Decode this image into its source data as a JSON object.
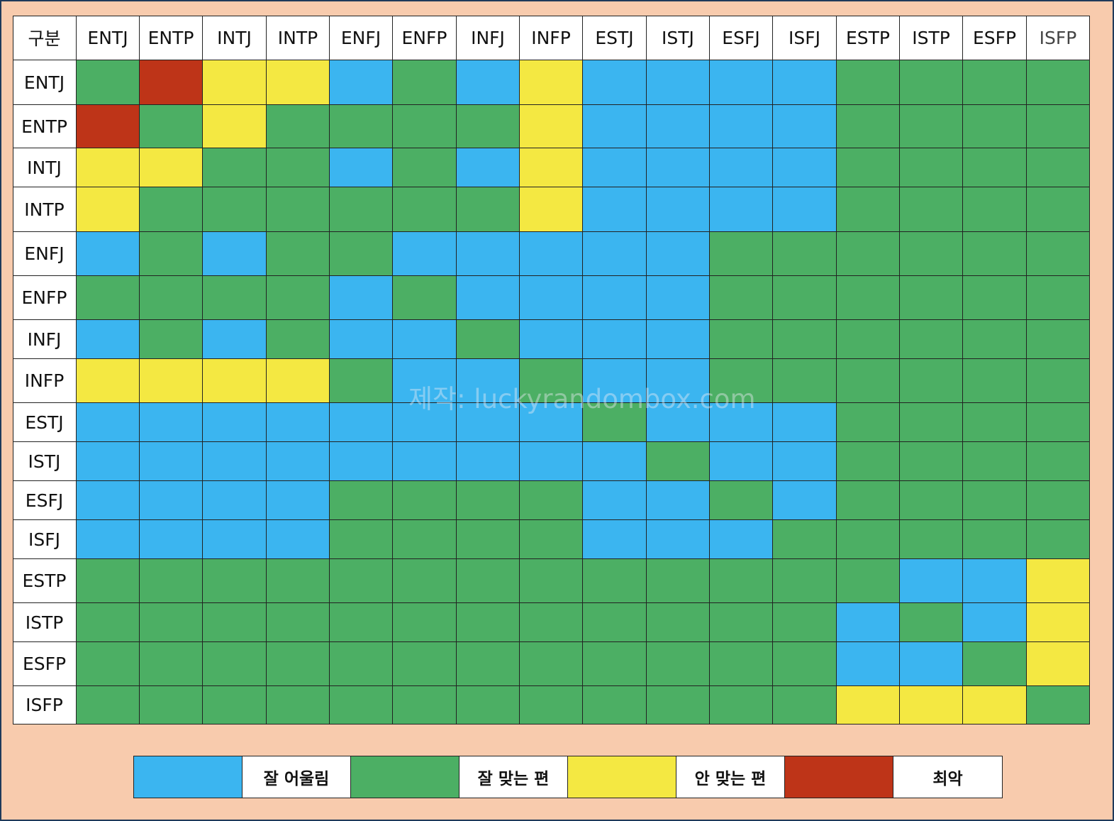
{
  "chart_data": {
    "type": "heatmap",
    "corner_label": "구분",
    "types": [
      "ENTJ",
      "ENTP",
      "INTJ",
      "INTP",
      "ENFJ",
      "ENFP",
      "INFJ",
      "INFP",
      "ESTJ",
      "ISTJ",
      "ESFJ",
      "ISFJ",
      "ESTP",
      "ISTP",
      "ESFP",
      "ISFP"
    ],
    "levels": [
      {
        "key": "B",
        "label": "잘 어울림",
        "color": "#3bb5f0"
      },
      {
        "key": "G",
        "label": "잘 맞는 편",
        "color": "#4caf64"
      },
      {
        "key": "Y",
        "label": "안 맞는 편",
        "color": "#f4e842"
      },
      {
        "key": "R",
        "label": "최악",
        "color": "#be3418"
      }
    ],
    "matrix": [
      "GRYYBGBYBBBBGGGG",
      "RGYGGGGYBBBBGGGG",
      "YYGGBGBYBBBBGGGG",
      "YGGGGGGYBBBBGGGG",
      "BGBGGBBBBBGGGGGG",
      "GGGGBGBBBBGGGGGG",
      "BGBGBBGBBBGGGGGG",
      "YYYYGBBGBBGGGGGG",
      "BBBBBBBBGBBBGGGG",
      "BBBBBBBBBGBBGGGG",
      "BBBBGGGGBBGBGGGG",
      "BBBBGGGGBBBGGGGG",
      "GGGGGGGGGGGGGBBY",
      "GGGGGGGGGGGGBGBY",
      "GGGGGGGGGGGGBBGY",
      "GGGGGGGGGGGGYYYG"
    ]
  },
  "watermark": "제작: luckyrandombox.com"
}
